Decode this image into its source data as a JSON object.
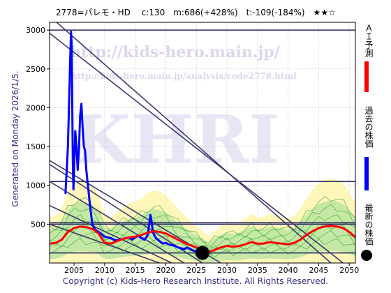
{
  "header": {
    "title": "2778=パレモ・HD　 c:130　m:686(+428%)　t:-109(-184%)　★★☆"
  },
  "side_note": "Generated on Monday 2026/1/5.",
  "footer": "Copyright (c) Kids-Hero Research Institute. All Rights Reserved.",
  "watermark": {
    "big": "KHRI",
    "url1": "http://kids-hero.main.jp/",
    "url2": "http://kids-hero.main.jp/analysis/code2778.html"
  },
  "legend": [
    {
      "label": "ＡＩ予測",
      "color": "#ff0000"
    },
    {
      "label": "過去の株価",
      "color": "#0000ff"
    },
    {
      "label": "最新の株価",
      "color": "#000000"
    }
  ],
  "chart_data": {
    "type": "line",
    "xlim": [
      2001,
      2051
    ],
    "ylim": [
      0,
      3100
    ],
    "x_ticks": [
      2005,
      2010,
      2015,
      2020,
      2025,
      2030,
      2035,
      2040,
      2045,
      2050
    ],
    "y_ticks": [
      500,
      1000,
      1500,
      2000,
      2500,
      3000
    ],
    "grid": true,
    "horizontal_levels": [
      130,
      500,
      520,
      1050,
      3000
    ],
    "trend_lines": [
      {
        "x": [
          2001,
          2047
        ],
        "y": [
          3180,
          0
        ]
      },
      {
        "x": [
          2001,
          2049
        ],
        "y": [
          2960,
          0
        ]
      },
      {
        "x": [
          2001,
          2029
        ],
        "y": [
          1320,
          0
        ]
      },
      {
        "x": [
          2001,
          2026
        ],
        "y": [
          1270,
          0
        ]
      },
      {
        "x": [
          2001,
          2023
        ],
        "y": [
          1050,
          0
        ]
      },
      {
        "x": [
          2001,
          2021
        ],
        "y": [
          740,
          0
        ]
      },
      {
        "x": [
          2001,
          2019
        ],
        "y": [
          500,
          0
        ]
      }
    ],
    "latest_point": {
      "x": 2026,
      "y": 130
    },
    "series": [
      {
        "name": "過去の株価",
        "color": "#0000ff",
        "x": [
          2003.6,
          2004,
          2004.3,
          2004.5,
          2004.6,
          2004.7,
          2004.8,
          2004.9,
          2005,
          2005.2,
          2005.4,
          2005.6,
          2005.8,
          2006,
          2006.2,
          2006.4,
          2006.6,
          2006.8,
          2007,
          2007.2,
          2007.4,
          2007.6,
          2007.8,
          2008,
          2008.3,
          2008.6,
          2009,
          2009.5,
          2010,
          2010.5,
          2011,
          2011.5,
          2012,
          2012.5,
          2013,
          2013.5,
          2014,
          2014.5,
          2015,
          2015.5,
          2016,
          2016.5,
          2017,
          2017.3,
          2017.5,
          2017.7,
          2017.9,
          2018.1,
          2018.4,
          2018.7,
          2019,
          2019.5,
          2020,
          2020.5,
          2021,
          2021.5,
          2022,
          2022.5,
          2023,
          2023.5,
          2024,
          2024.5,
          2025,
          2025.5,
          2026
        ],
        "values": [
          900,
          1500,
          2400,
          2980,
          2850,
          2100,
          1300,
          950,
          1150,
          1700,
          1500,
          1200,
          1450,
          1900,
          2050,
          1750,
          1500,
          1450,
          1200,
          1050,
          900,
          750,
          620,
          500,
          450,
          420,
          400,
          370,
          340,
          330,
          320,
          300,
          290,
          300,
          310,
          320,
          330,
          300,
          330,
          350,
          320,
          300,
          350,
          500,
          620,
          520,
          400,
          360,
          320,
          300,
          280,
          250,
          260,
          240,
          230,
          220,
          200,
          190,
          180,
          200,
          180,
          160,
          150,
          140,
          130
        ]
      },
      {
        "name": "ＡＩ予測",
        "color": "#ff0000",
        "x": [
          2001,
          2002,
          2003,
          2004,
          2005,
          2006,
          2007,
          2008,
          2009,
          2010,
          2011,
          2012,
          2013,
          2014,
          2015,
          2016,
          2017,
          2018,
          2019,
          2020,
          2021,
          2022,
          2023,
          2024,
          2025,
          2026,
          2027,
          2028,
          2029,
          2030,
          2031,
          2032,
          2033,
          2034,
          2035,
          2036,
          2037,
          2038,
          2039,
          2040,
          2041,
          2042,
          2043,
          2044,
          2045,
          2046,
          2047,
          2048,
          2049,
          2050,
          2051
        ],
        "values": [
          250,
          260,
          300,
          400,
          450,
          470,
          460,
          440,
          380,
          260,
          250,
          280,
          310,
          330,
          340,
          360,
          390,
          410,
          400,
          380,
          340,
          300,
          260,
          230,
          200,
          170,
          140,
          170,
          200,
          220,
          210,
          220,
          240,
          270,
          250,
          250,
          270,
          260,
          250,
          240,
          260,
          300,
          360,
          410,
          450,
          470,
          480,
          470,
          450,
          400,
          330
        ]
      }
    ]
  }
}
